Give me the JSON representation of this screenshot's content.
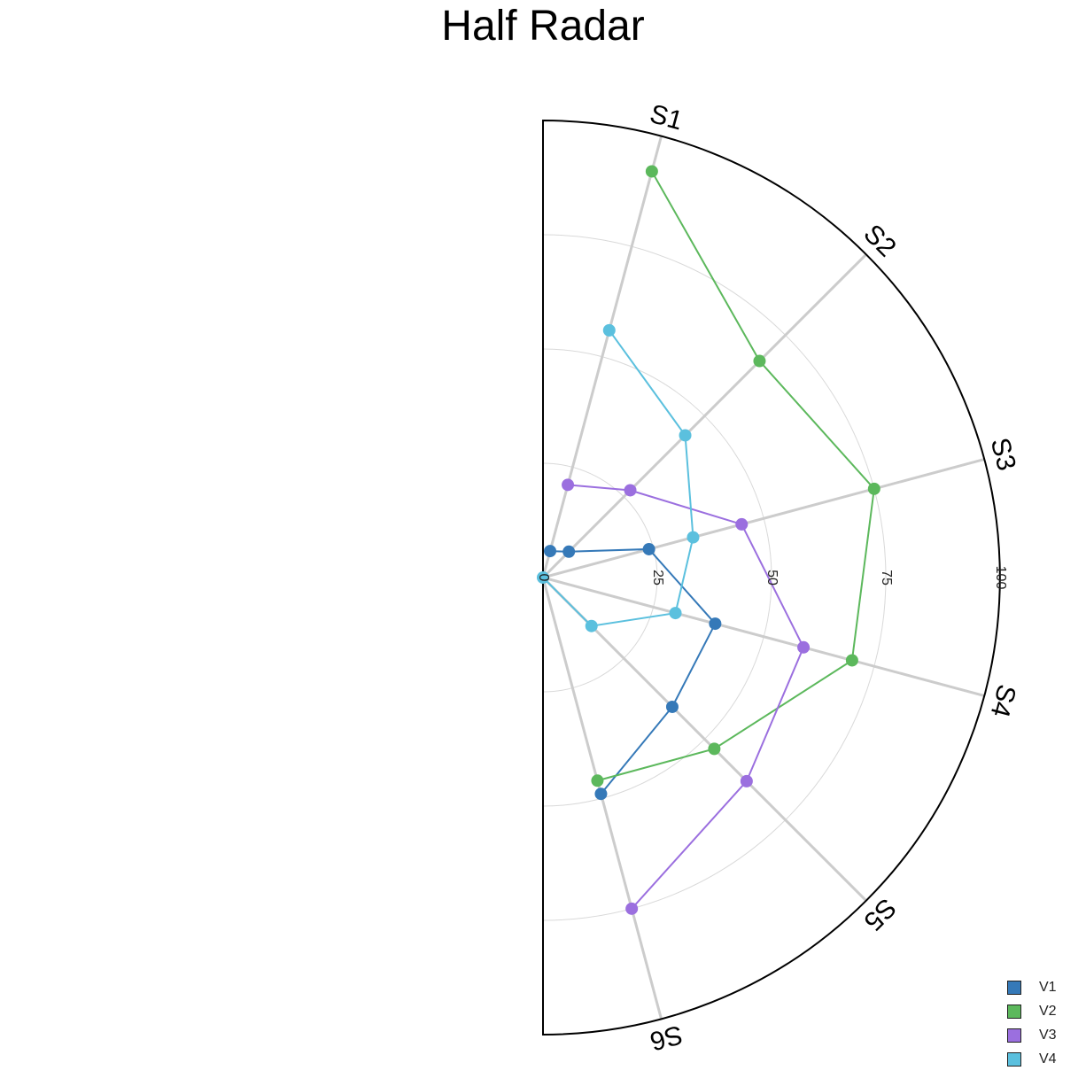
{
  "chart_data": {
    "type": "radar",
    "title": "Half Radar",
    "categories": [
      "S1",
      "S2",
      "S3",
      "S4",
      "S5",
      "S6"
    ],
    "rlim": [
      0,
      100
    ],
    "radial_ticks": [
      0,
      25,
      50,
      75,
      100
    ],
    "radial_tick_labels": [
      "0",
      "25",
      "50",
      "75",
      "100"
    ],
    "angular_span": "half (right side)",
    "grid": true,
    "legend_position": "bottom-right",
    "series": [
      {
        "name": "V1",
        "color": "#3579b8",
        "values": [
          6,
          8,
          24,
          39,
          40,
          49
        ]
      },
      {
        "name": "V2",
        "color": "#5cb85c",
        "values": [
          92,
          67,
          75,
          70,
          53,
          46
        ]
      },
      {
        "name": "V3",
        "color": "#9b6fdf",
        "values": [
          21,
          27,
          45,
          59,
          63,
          75
        ]
      },
      {
        "name": "V4",
        "color": "#5bc0de",
        "values": [
          56,
          44,
          34,
          30,
          15,
          0
        ]
      }
    ]
  }
}
